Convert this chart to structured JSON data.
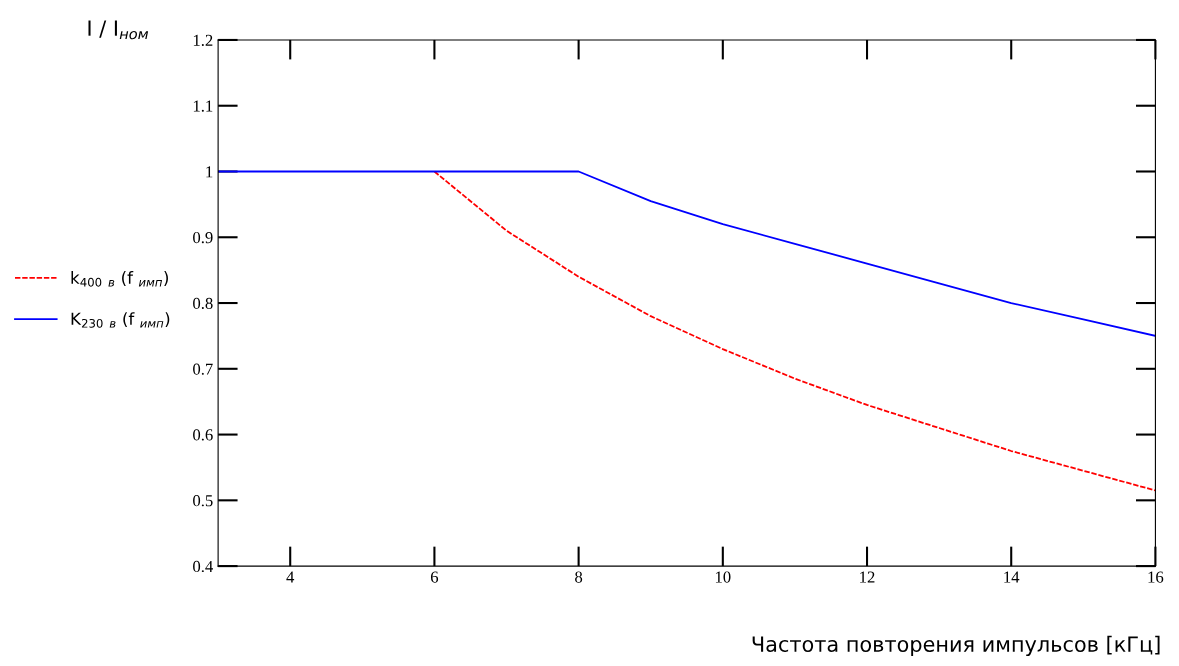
{
  "chart_data": {
    "type": "line",
    "xlabel": "Частота повторения импульсов [кГц]",
    "ylabel": "I / I$_{ном}$",
    "xlim": [
      3,
      16
    ],
    "xticks": [
      4,
      6,
      8,
      10,
      12,
      14,
      16
    ],
    "ylim": [
      0.4,
      1.2
    ],
    "yticks": [
      0.4,
      0.5,
      0.6,
      0.7,
      0.8,
      0.9,
      1,
      1.1,
      1.2
    ],
    "grid": false,
    "legend": "left",
    "series": [
      {
        "name": "k$_{400}$ $_{в}$ (f $_{имп}$)",
        "color": "#ff0000",
        "line_style": "dashed",
        "x": [
          6,
          7,
          8,
          9,
          10,
          11,
          12,
          13,
          14,
          15,
          16
        ],
        "values": [
          1,
          0.91,
          0.84,
          0.78,
          0.73,
          0.685,
          0.645,
          0.61,
          0.575,
          0.545,
          0.515
        ]
      },
      {
        "name": "K$_{230}$ $_{в}$ (f $_{имп}$)",
        "color": "#0000ff",
        "line_style": "solid",
        "x": [
          3,
          4,
          5,
          6,
          7,
          8,
          9,
          10,
          11,
          12,
          13,
          14,
          15,
          16
        ],
        "values": [
          1,
          1,
          1,
          1,
          1,
          1,
          0.955,
          0.92,
          0.89,
          0.86,
          0.83,
          0.8,
          0.775,
          0.75
        ]
      }
    ]
  }
}
